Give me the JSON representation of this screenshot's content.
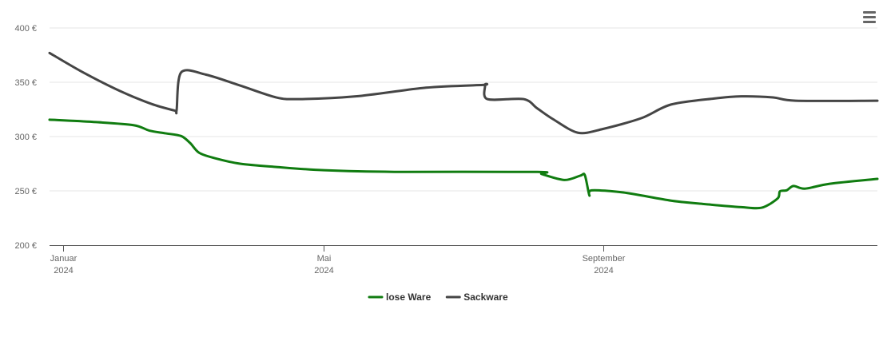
{
  "menu": {
    "icon": "hamburger-menu-icon"
  },
  "colors": {
    "lose": "#107c10",
    "sack": "#454545",
    "grid": "#e6e6e6",
    "axis": "#555555"
  },
  "chart_data": {
    "type": "line",
    "title": "",
    "xlabel": "",
    "ylabel": "",
    "ylim": [
      200,
      400
    ],
    "xlim": [
      "2024-01-01",
      "2024-12-31"
    ],
    "grid": true,
    "legend_position": "bottom-center",
    "yticks": [
      {
        "value": 200,
        "label": "200 €"
      },
      {
        "value": 250,
        "label": "250 €"
      },
      {
        "value": 300,
        "label": "300 €"
      },
      {
        "value": 350,
        "label": "350 €"
      },
      {
        "value": 400,
        "label": "400 €"
      }
    ],
    "xticks": [
      {
        "date": "2024-01-07",
        "month": "Januar",
        "year": "2024"
      },
      {
        "date": "2024-05-01",
        "month": "Mai",
        "year": "2024"
      },
      {
        "date": "2024-09-01",
        "month": "September",
        "year": "2024"
      }
    ],
    "series": [
      {
        "name": "lose Ware",
        "color": "#107c10",
        "points": [
          [
            "2024-01-01",
            315.5
          ],
          [
            "2024-01-20",
            313.5
          ],
          [
            "2024-02-07",
            310.5
          ],
          [
            "2024-02-14",
            305.5
          ],
          [
            "2024-02-21",
            303
          ],
          [
            "2024-02-28",
            300.5
          ],
          [
            "2024-03-03",
            294
          ],
          [
            "2024-03-07",
            285
          ],
          [
            "2024-03-14",
            280
          ],
          [
            "2024-03-25",
            275
          ],
          [
            "2024-04-10",
            272
          ],
          [
            "2024-05-01",
            269
          ],
          [
            "2024-06-01",
            267.5
          ],
          [
            "2024-08-03",
            267.5
          ],
          [
            "2024-08-05",
            265.5
          ],
          [
            "2024-08-15",
            260
          ],
          [
            "2024-08-22",
            264
          ],
          [
            "2024-08-24",
            264.5
          ],
          [
            "2024-08-26",
            246
          ],
          [
            "2024-08-27",
            250.5
          ],
          [
            "2024-09-10",
            248.5
          ],
          [
            "2024-10-01",
            241
          ],
          [
            "2024-10-15",
            238
          ],
          [
            "2024-11-01",
            235
          ],
          [
            "2024-11-10",
            234.5
          ],
          [
            "2024-11-17",
            243
          ],
          [
            "2024-11-18",
            249.5
          ],
          [
            "2024-11-21",
            250.5
          ],
          [
            "2024-11-24",
            254.5
          ],
          [
            "2024-11-29",
            252
          ],
          [
            "2024-12-10",
            256.5
          ],
          [
            "2024-12-31",
            261
          ]
        ]
      },
      {
        "name": "Sackware",
        "color": "#454545",
        "points": [
          [
            "2024-01-01",
            377
          ],
          [
            "2024-01-15",
            360
          ],
          [
            "2024-02-01",
            342
          ],
          [
            "2024-02-15",
            330
          ],
          [
            "2024-02-25",
            324
          ],
          [
            "2024-02-26",
            324
          ],
          [
            "2024-02-28",
            359
          ],
          [
            "2024-03-10",
            357
          ],
          [
            "2024-03-25",
            347
          ],
          [
            "2024-04-10",
            336
          ],
          [
            "2024-04-20",
            334.5
          ],
          [
            "2024-05-15",
            337
          ],
          [
            "2024-06-15",
            345
          ],
          [
            "2024-07-10",
            347.5
          ],
          [
            "2024-07-11",
            347.5
          ],
          [
            "2024-07-12",
            334.5
          ],
          [
            "2024-07-28",
            334.5
          ],
          [
            "2024-08-03",
            326
          ],
          [
            "2024-08-10",
            316
          ],
          [
            "2024-08-21",
            303.5
          ],
          [
            "2024-09-01",
            307
          ],
          [
            "2024-09-18",
            317
          ],
          [
            "2024-10-01",
            329.5
          ],
          [
            "2024-10-20",
            335
          ],
          [
            "2024-11-01",
            337
          ],
          [
            "2024-11-15",
            336
          ],
          [
            "2024-11-25",
            333
          ],
          [
            "2024-12-31",
            333
          ]
        ]
      }
    ]
  }
}
